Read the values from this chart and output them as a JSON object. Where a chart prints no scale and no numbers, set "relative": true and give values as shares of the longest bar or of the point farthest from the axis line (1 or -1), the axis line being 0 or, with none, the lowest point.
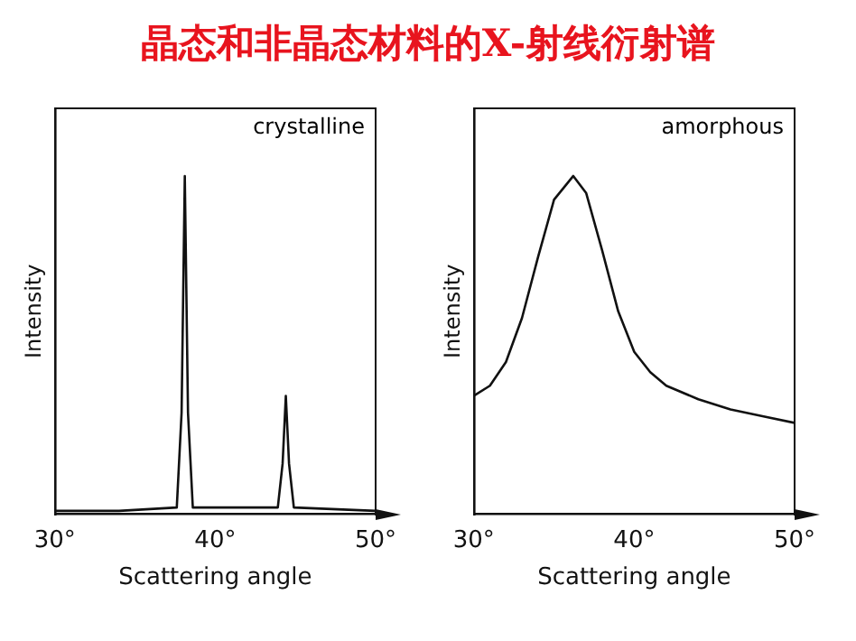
{
  "chart_data": [
    {
      "type": "line",
      "title": "晶态和非晶态材料的X-射线衍射谱",
      "annotations": [
        "crystalline"
      ],
      "xlabel": "Scattering angle",
      "ylabel": "Intensity",
      "relative": true,
      "x": [
        30,
        34,
        37.6,
        37.9,
        38.1,
        38.3,
        38.6,
        43.9,
        44.2,
        44.4,
        44.6,
        44.9,
        50
      ],
      "series": [
        {
          "color": "#111111",
          "values": [
            0.01,
            0.01,
            0.02,
            0.3,
            1,
            0.3,
            0.02,
            0.02,
            0.15,
            0.35,
            0.15,
            0.02,
            0.01
          ]
        }
      ],
      "xlim": [
        30,
        50
      ],
      "xticks": [
        {
          "value": 30,
          "label": "30°"
        },
        {
          "value": 40,
          "label": "40°"
        },
        {
          "value": 50,
          "label": "50°"
        }
      ],
      "grid": false,
      "legend": false,
      "marker": "none",
      "line_style": "solid"
    },
    {
      "type": "line",
      "annotations": [
        "amorphous"
      ],
      "xlabel": "Scattering angle",
      "ylabel": "Intensity",
      "relative": true,
      "x": [
        30,
        31,
        32,
        33,
        34,
        35,
        36.2,
        37,
        38,
        39,
        40,
        41,
        42,
        44,
        46,
        48,
        50
      ],
      "series": [
        {
          "color": "#111111",
          "values": [
            0.35,
            0.38,
            0.45,
            0.58,
            0.76,
            0.93,
            1,
            0.95,
            0.78,
            0.6,
            0.48,
            0.42,
            0.38,
            0.34,
            0.31,
            0.29,
            0.27
          ]
        }
      ],
      "xlim": [
        30,
        50
      ],
      "xticks": [
        {
          "value": 30,
          "label": "30°"
        },
        {
          "value": 40,
          "label": "40°"
        },
        {
          "value": 50,
          "label": "50°"
        }
      ],
      "grid": false,
      "legend": false,
      "marker": "none",
      "line_style": "solid"
    }
  ]
}
